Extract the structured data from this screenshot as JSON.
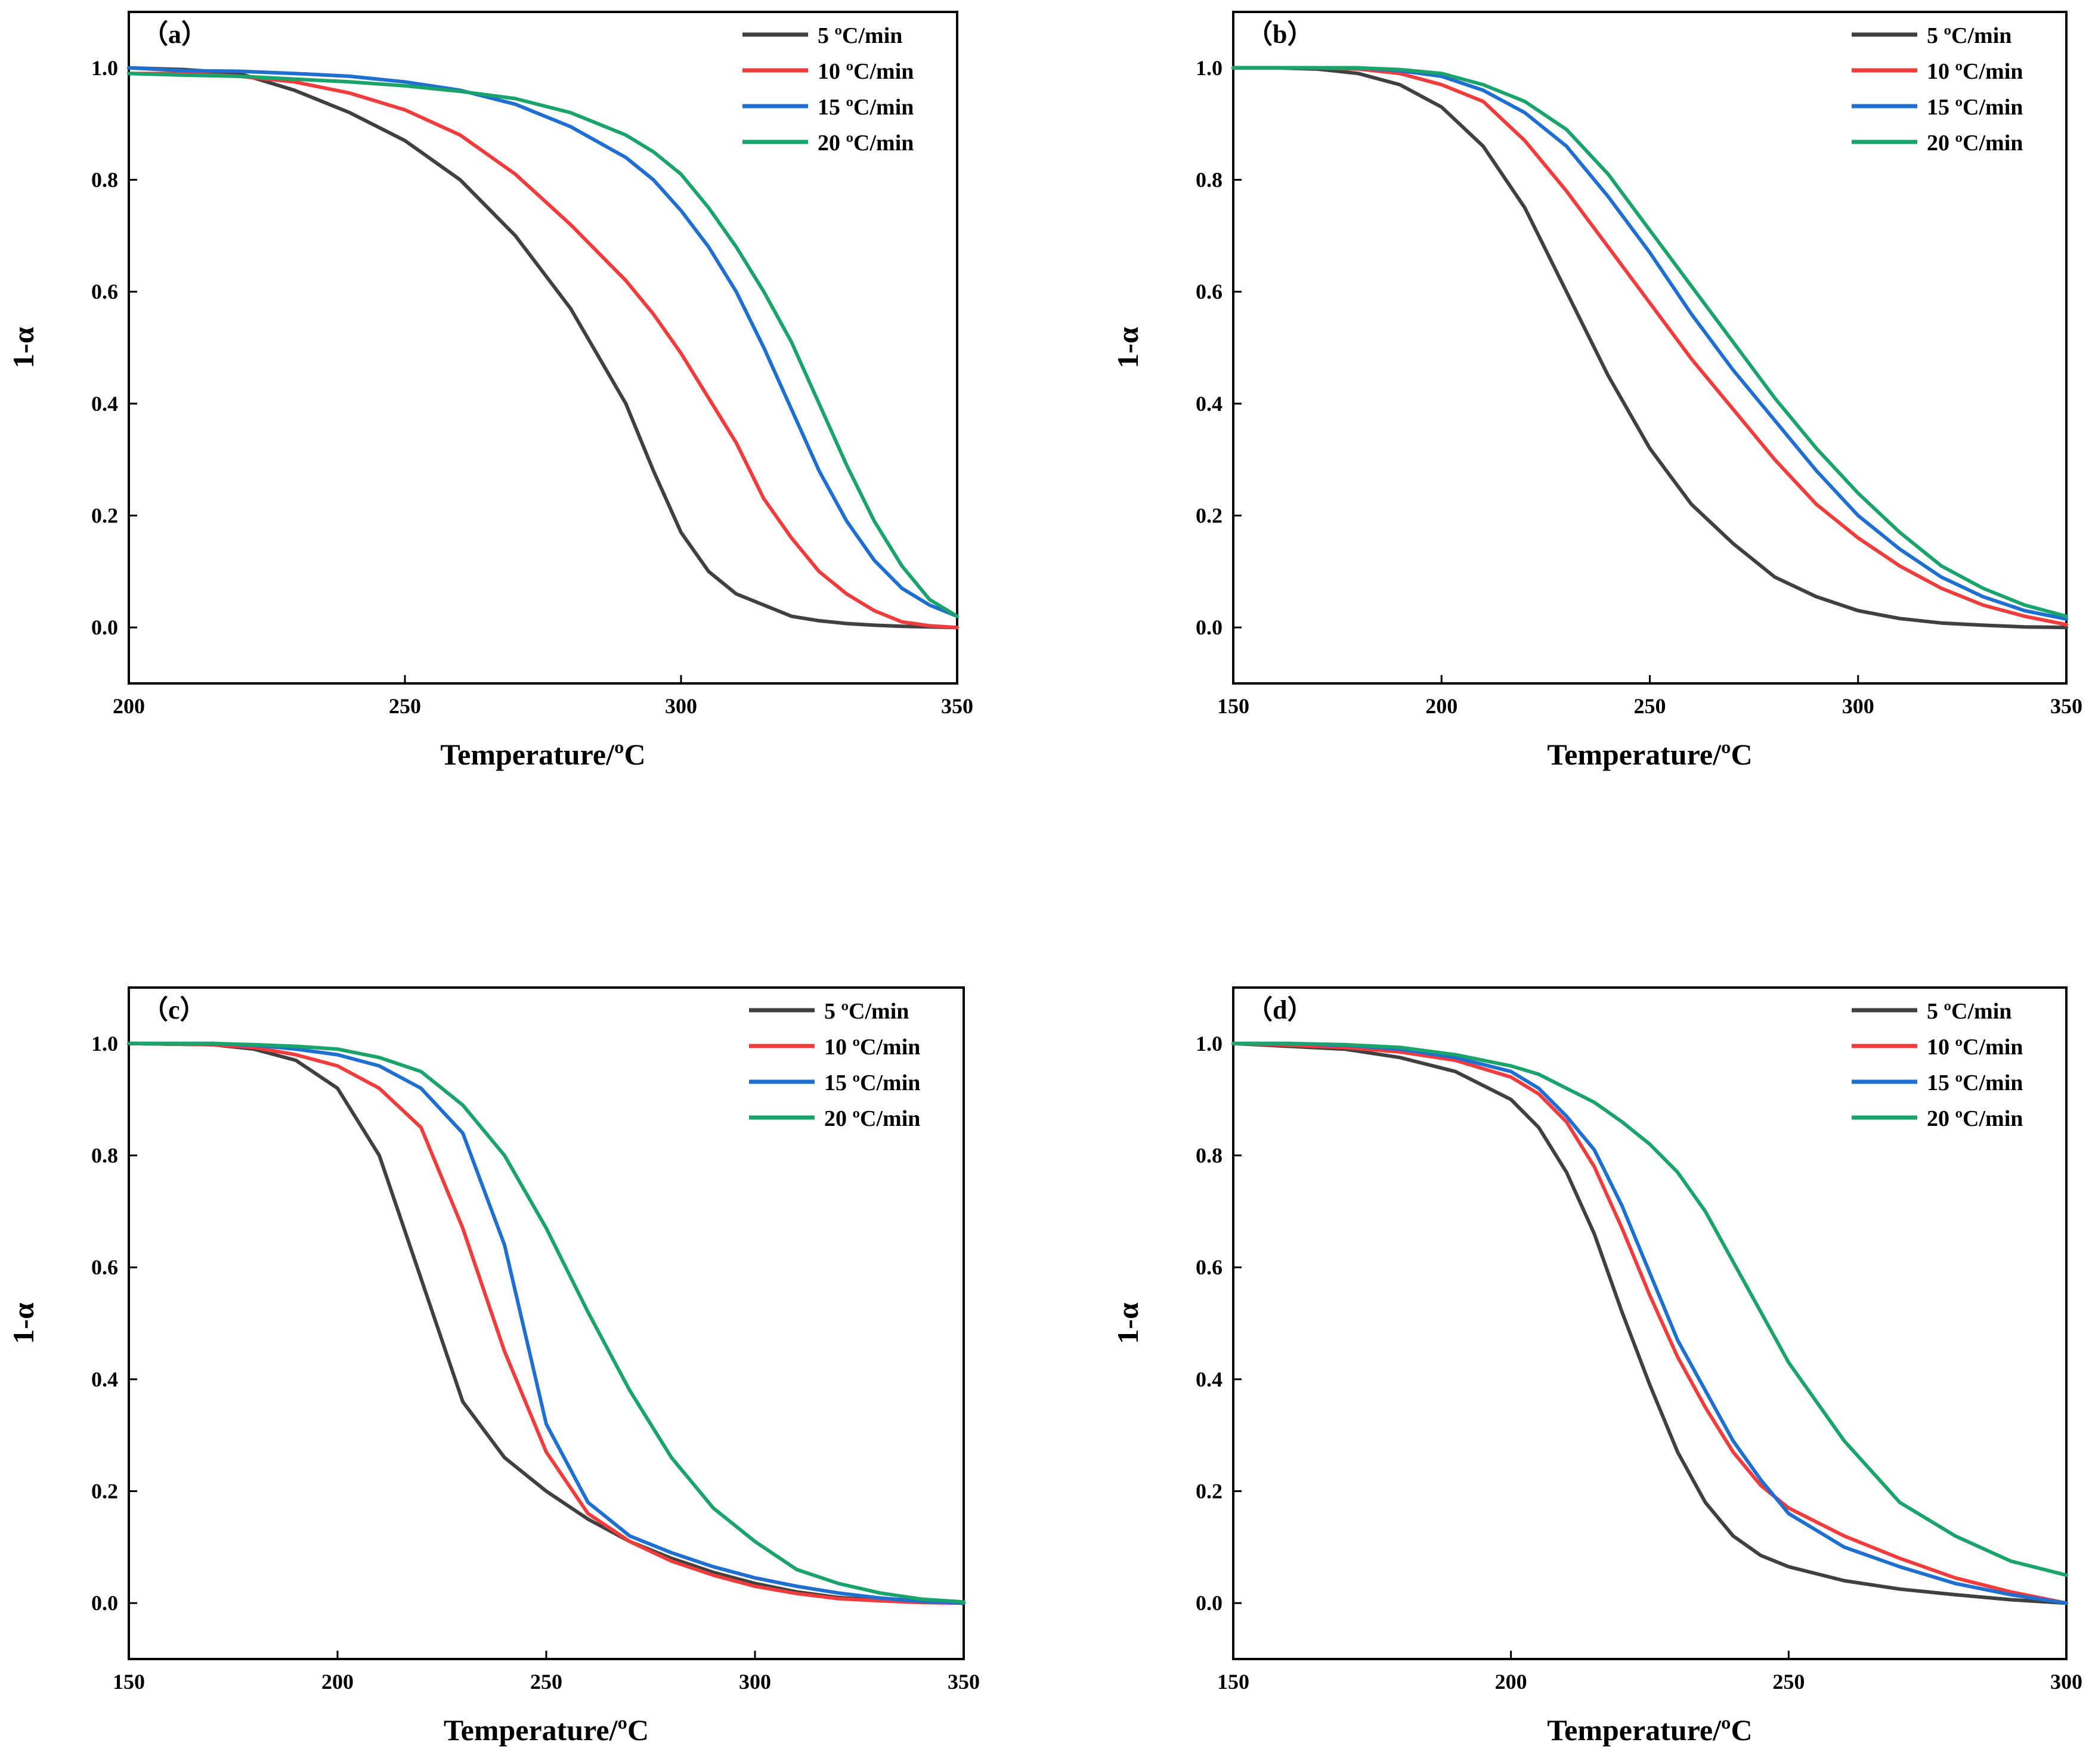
{
  "figure": {
    "panels": [
      "(a)",
      "(b)",
      "(c)",
      "(d)"
    ]
  },
  "chart_data": [
    {
      "type": "line",
      "panel_label": "（a）",
      "xlabel": "Temperature/ºC",
      "ylabel": "1-α",
      "xlim": [
        200,
        350
      ],
      "ylim": [
        -0.1,
        1.1
      ],
      "xticks": [
        200,
        250,
        300,
        350
      ],
      "yticks": [
        0.0,
        0.2,
        0.4,
        0.6,
        0.8,
        1.0
      ],
      "x": [
        200,
        210,
        220,
        230,
        240,
        250,
        260,
        270,
        280,
        290,
        295,
        300,
        305,
        310,
        315,
        320,
        325,
        330,
        335,
        340,
        345,
        350
      ],
      "series": [
        {
          "name": "5 ºC/min",
          "color": "#404040",
          "values": [
            1.0,
            0.997,
            0.99,
            0.96,
            0.92,
            0.87,
            0.8,
            0.7,
            0.57,
            0.4,
            0.28,
            0.17,
            0.1,
            0.06,
            0.04,
            0.02,
            0.012,
            0.007,
            0.004,
            0.002,
            0.001,
            0.0
          ]
        },
        {
          "name": "10 ºC/min",
          "color": "#f03c3c",
          "values": [
            0.99,
            0.99,
            0.985,
            0.975,
            0.955,
            0.925,
            0.88,
            0.81,
            0.72,
            0.62,
            0.56,
            0.49,
            0.41,
            0.33,
            0.23,
            0.16,
            0.1,
            0.06,
            0.03,
            0.01,
            0.003,
            0.0
          ]
        },
        {
          "name": "15 ºC/min",
          "color": "#1f6fd1",
          "values": [
            1.0,
            0.995,
            0.994,
            0.99,
            0.985,
            0.975,
            0.96,
            0.935,
            0.895,
            0.84,
            0.8,
            0.745,
            0.68,
            0.6,
            0.5,
            0.39,
            0.28,
            0.19,
            0.12,
            0.07,
            0.04,
            0.02
          ]
        },
        {
          "name": "20 ºC/min",
          "color": "#1aa36b",
          "values": [
            0.99,
            0.987,
            0.985,
            0.98,
            0.975,
            0.968,
            0.958,
            0.945,
            0.92,
            0.88,
            0.85,
            0.81,
            0.75,
            0.68,
            0.6,
            0.51,
            0.4,
            0.29,
            0.19,
            0.11,
            0.05,
            0.02
          ]
        }
      ],
      "legend": "top-right",
      "grid": false
    },
    {
      "type": "line",
      "panel_label": "（b）",
      "xlabel": "Temperature/ºC",
      "ylabel": "1-α",
      "xlim": [
        150,
        350
      ],
      "ylim": [
        -0.1,
        1.1
      ],
      "xticks": [
        150,
        200,
        250,
        300,
        350
      ],
      "yticks": [
        0.0,
        0.2,
        0.4,
        0.6,
        0.8,
        1.0
      ],
      "x": [
        150,
        160,
        170,
        180,
        190,
        200,
        210,
        220,
        230,
        240,
        250,
        260,
        270,
        280,
        290,
        300,
        310,
        320,
        330,
        340,
        350
      ],
      "series": [
        {
          "name": "5 ºC/min",
          "color": "#404040",
          "values": [
            1.0,
            1.0,
            0.998,
            0.99,
            0.97,
            0.93,
            0.86,
            0.75,
            0.6,
            0.45,
            0.32,
            0.22,
            0.15,
            0.09,
            0.055,
            0.03,
            0.016,
            0.008,
            0.004,
            0.001,
            0.0
          ]
        },
        {
          "name": "10 ºC/min",
          "color": "#f03c3c",
          "values": [
            1.0,
            1.0,
            1.0,
            0.998,
            0.99,
            0.97,
            0.94,
            0.87,
            0.78,
            0.68,
            0.58,
            0.48,
            0.39,
            0.3,
            0.22,
            0.16,
            0.11,
            0.07,
            0.04,
            0.02,
            0.005
          ]
        },
        {
          "name": "15 ºC/min",
          "color": "#1f6fd1",
          "values": [
            1.0,
            1.0,
            1.0,
            1.0,
            0.995,
            0.985,
            0.96,
            0.92,
            0.86,
            0.77,
            0.67,
            0.56,
            0.46,
            0.37,
            0.28,
            0.2,
            0.14,
            0.09,
            0.055,
            0.03,
            0.015
          ]
        },
        {
          "name": "20 ºC/min",
          "color": "#1aa36b",
          "values": [
            1.0,
            1.0,
            1.0,
            1.0,
            0.997,
            0.99,
            0.97,
            0.94,
            0.89,
            0.81,
            0.71,
            0.61,
            0.51,
            0.41,
            0.32,
            0.24,
            0.17,
            0.11,
            0.07,
            0.04,
            0.02
          ]
        }
      ],
      "legend": "top-right",
      "grid": false
    },
    {
      "type": "line",
      "panel_label": "（c）",
      "xlabel": "Temperature/ºC",
      "ylabel": "1-α",
      "xlim": [
        150,
        350
      ],
      "ylim": [
        -0.1,
        1.1
      ],
      "xticks": [
        150,
        200,
        250,
        300,
        350
      ],
      "yticks": [
        0.0,
        0.2,
        0.4,
        0.6,
        0.8,
        1.0
      ],
      "x": [
        150,
        170,
        180,
        190,
        200,
        210,
        220,
        230,
        240,
        250,
        260,
        270,
        280,
        290,
        300,
        310,
        320,
        330,
        340,
        350
      ],
      "series": [
        {
          "name": "5 ºC/min",
          "color": "#404040",
          "values": [
            1.0,
            0.998,
            0.99,
            0.97,
            0.92,
            0.8,
            0.58,
            0.36,
            0.26,
            0.2,
            0.15,
            0.11,
            0.08,
            0.055,
            0.035,
            0.02,
            0.01,
            0.005,
            0.002,
            0.0
          ]
        },
        {
          "name": "10 ºC/min",
          "color": "#f03c3c",
          "values": [
            1.0,
            0.998,
            0.993,
            0.98,
            0.96,
            0.92,
            0.85,
            0.67,
            0.45,
            0.27,
            0.16,
            0.11,
            0.075,
            0.05,
            0.03,
            0.017,
            0.008,
            0.004,
            0.001,
            0.0
          ]
        },
        {
          "name": "15 ºC/min",
          "color": "#1f6fd1",
          "values": [
            1.0,
            1.0,
            0.997,
            0.99,
            0.98,
            0.96,
            0.92,
            0.84,
            0.64,
            0.32,
            0.18,
            0.12,
            0.09,
            0.065,
            0.045,
            0.03,
            0.018,
            0.009,
            0.003,
            0.0
          ]
        },
        {
          "name": "20 ºC/min",
          "color": "#1aa36b",
          "values": [
            1.0,
            1.0,
            0.998,
            0.995,
            0.99,
            0.975,
            0.95,
            0.89,
            0.8,
            0.67,
            0.52,
            0.38,
            0.26,
            0.17,
            0.11,
            0.06,
            0.035,
            0.018,
            0.007,
            0.002
          ]
        }
      ],
      "legend": "top-right",
      "grid": false
    },
    {
      "type": "line",
      "panel_label": "（d）",
      "xlabel": "Temperature/ºC",
      "ylabel": "1-α",
      "xlim": [
        150,
        300
      ],
      "ylim": [
        -0.1,
        1.1
      ],
      "xticks": [
        150,
        200,
        250,
        300
      ],
      "yticks": [
        0.0,
        0.2,
        0.4,
        0.6,
        0.8,
        1.0
      ],
      "x": [
        150,
        160,
        170,
        180,
        190,
        200,
        205,
        210,
        215,
        220,
        225,
        230,
        235,
        240,
        245,
        250,
        260,
        270,
        280,
        290,
        300
      ],
      "series": [
        {
          "name": "5 ºC/min",
          "color": "#404040",
          "values": [
            1.0,
            0.995,
            0.99,
            0.975,
            0.95,
            0.9,
            0.85,
            0.77,
            0.66,
            0.52,
            0.39,
            0.27,
            0.18,
            0.12,
            0.085,
            0.065,
            0.04,
            0.025,
            0.015,
            0.006,
            0.0
          ]
        },
        {
          "name": "10 ºC/min",
          "color": "#f03c3c",
          "values": [
            1.0,
            0.997,
            0.993,
            0.985,
            0.97,
            0.94,
            0.91,
            0.86,
            0.78,
            0.67,
            0.55,
            0.44,
            0.35,
            0.27,
            0.21,
            0.17,
            0.12,
            0.08,
            0.045,
            0.02,
            0.0
          ]
        },
        {
          "name": "15 ºC/min",
          "color": "#1f6fd1",
          "values": [
            1.0,
            1.0,
            0.997,
            0.99,
            0.975,
            0.95,
            0.92,
            0.87,
            0.81,
            0.71,
            0.59,
            0.47,
            0.38,
            0.29,
            0.22,
            0.16,
            0.1,
            0.065,
            0.035,
            0.015,
            0.0
          ]
        },
        {
          "name": "20 ºC/min",
          "color": "#1aa36b",
          "values": [
            1.0,
            1.0,
            0.998,
            0.993,
            0.98,
            0.96,
            0.945,
            0.92,
            0.895,
            0.86,
            0.82,
            0.77,
            0.7,
            0.61,
            0.52,
            0.43,
            0.29,
            0.18,
            0.12,
            0.075,
            0.05
          ]
        }
      ],
      "legend": "top-right",
      "grid": false
    }
  ]
}
